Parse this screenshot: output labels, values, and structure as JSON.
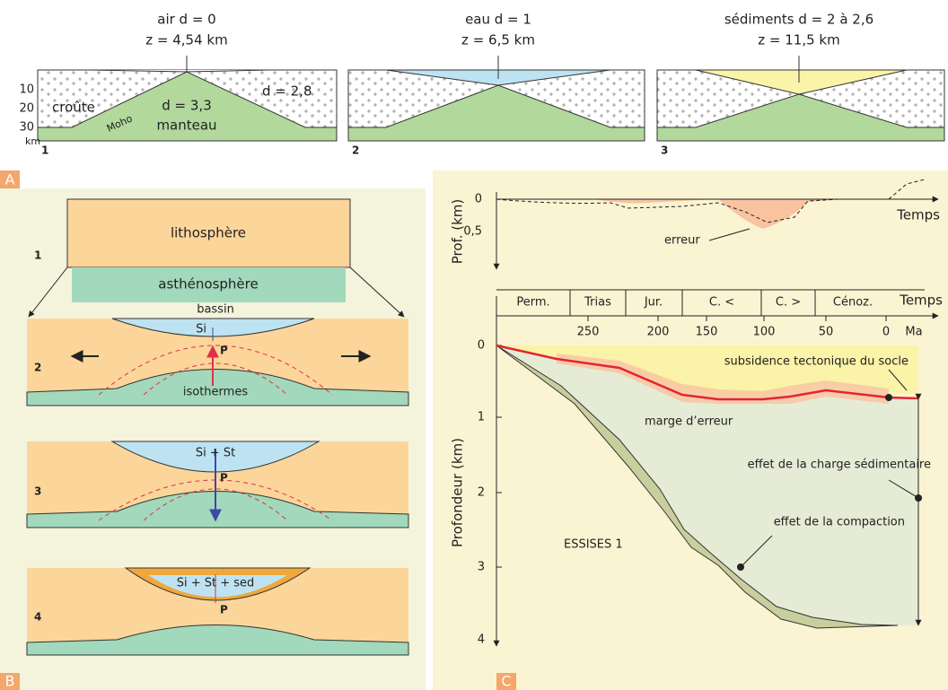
{
  "panel_a": {
    "label": "A",
    "columns": [
      {
        "title": "air d = 0",
        "depth": "z = 4,54 km",
        "number": "1"
      },
      {
        "title": "eau d = 1",
        "depth": "z = 6,5 km",
        "number": "2"
      },
      {
        "title": "sédiments d = 2 à 2,6",
        "depth": "z = 11,5 km",
        "number": "3"
      }
    ],
    "axis_ticks": [
      "10",
      "20",
      "30"
    ],
    "axis_unit": "km",
    "labels": {
      "crust": "croûte",
      "moho": "Moho",
      "mantle_density": "d = 3,3",
      "mantle": "manteau",
      "crust_density": "d = 2,8"
    }
  },
  "panel_b": {
    "label": "B",
    "stages": [
      {
        "number": "1",
        "lithosphere": "lithosphère",
        "asthenosphere": "asthénosphère"
      },
      {
        "number": "2",
        "basin": "bassin",
        "fill": "Si",
        "point": "P",
        "isotherms": "isothermes"
      },
      {
        "number": "3",
        "fill": "Si + St",
        "point": "P"
      },
      {
        "number": "4",
        "fill": "Si + St + sed",
        "point": "P"
      }
    ]
  },
  "panel_c": {
    "label": "C",
    "top": {
      "yticks": [
        "0",
        "0,5"
      ],
      "ylabel": "Prof. (km)",
      "xlabel": "Temps",
      "annotation": "erreur"
    },
    "bottom": {
      "periods": [
        "Perm.",
        "Trias",
        "Jur.",
        "C. <",
        "C. >",
        "Cénoz."
      ],
      "period_axis": "Temps",
      "xticks": [
        "250",
        "200",
        "150",
        "100",
        "50",
        "0"
      ],
      "xunit": "Ma",
      "yticks": [
        "0",
        "1",
        "2",
        "3",
        "4"
      ],
      "ylabel": "Profondeur (km)",
      "annotations": {
        "tectonic": "subsidence tectonique du socle",
        "error": "marge d’erreur",
        "load": "effet de la charge sédimentaire",
        "compaction": "effet de la compaction",
        "well": "ESSISES 1"
      }
    }
  }
}
